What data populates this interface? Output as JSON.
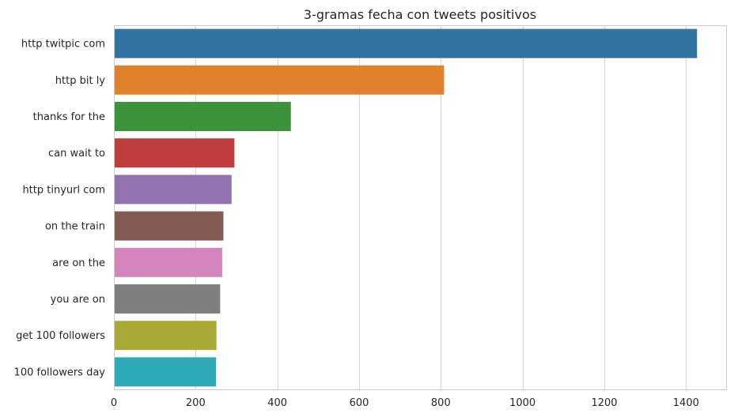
{
  "chart_data": {
    "type": "bar",
    "orientation": "horizontal",
    "title": "3-gramas fecha con tweets positivos",
    "xlabel": "",
    "ylabel": "",
    "categories": [
      "http twitpic com",
      "http bit ly",
      "thanks for the",
      "can wait to",
      "http tinyurl com",
      "on the train",
      "are on the",
      "you are on",
      "get 100 followers",
      "100 followers day"
    ],
    "values": [
      1427,
      808,
      433,
      295,
      288,
      268,
      265,
      260,
      251,
      250
    ],
    "colors": [
      "#3274a1",
      "#e1812c",
      "#3a923a",
      "#c03d3e",
      "#9372b2",
      "#845b53",
      "#d684bd",
      "#7f7f7f",
      "#a9aa35",
      "#2ea9b8"
    ],
    "xlim": [
      0,
      1500
    ],
    "xticks": [
      0,
      200,
      400,
      600,
      800,
      1000,
      1200,
      1400
    ],
    "grid": true,
    "grid_axis": "x",
    "legend": "none"
  }
}
